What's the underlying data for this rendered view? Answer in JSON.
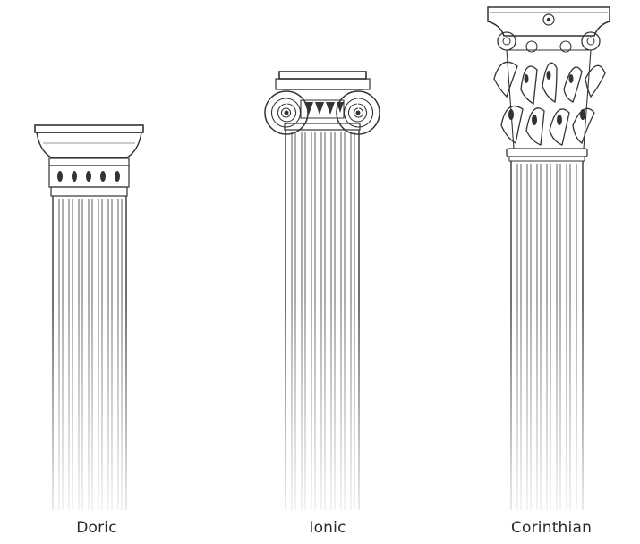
{
  "columns": [
    {
      "label": "Doric"
    },
    {
      "label": "Ionic"
    },
    {
      "label": "Corinthian"
    }
  ],
  "colors": {
    "ink": "#333333",
    "background": "#ffffff"
  }
}
